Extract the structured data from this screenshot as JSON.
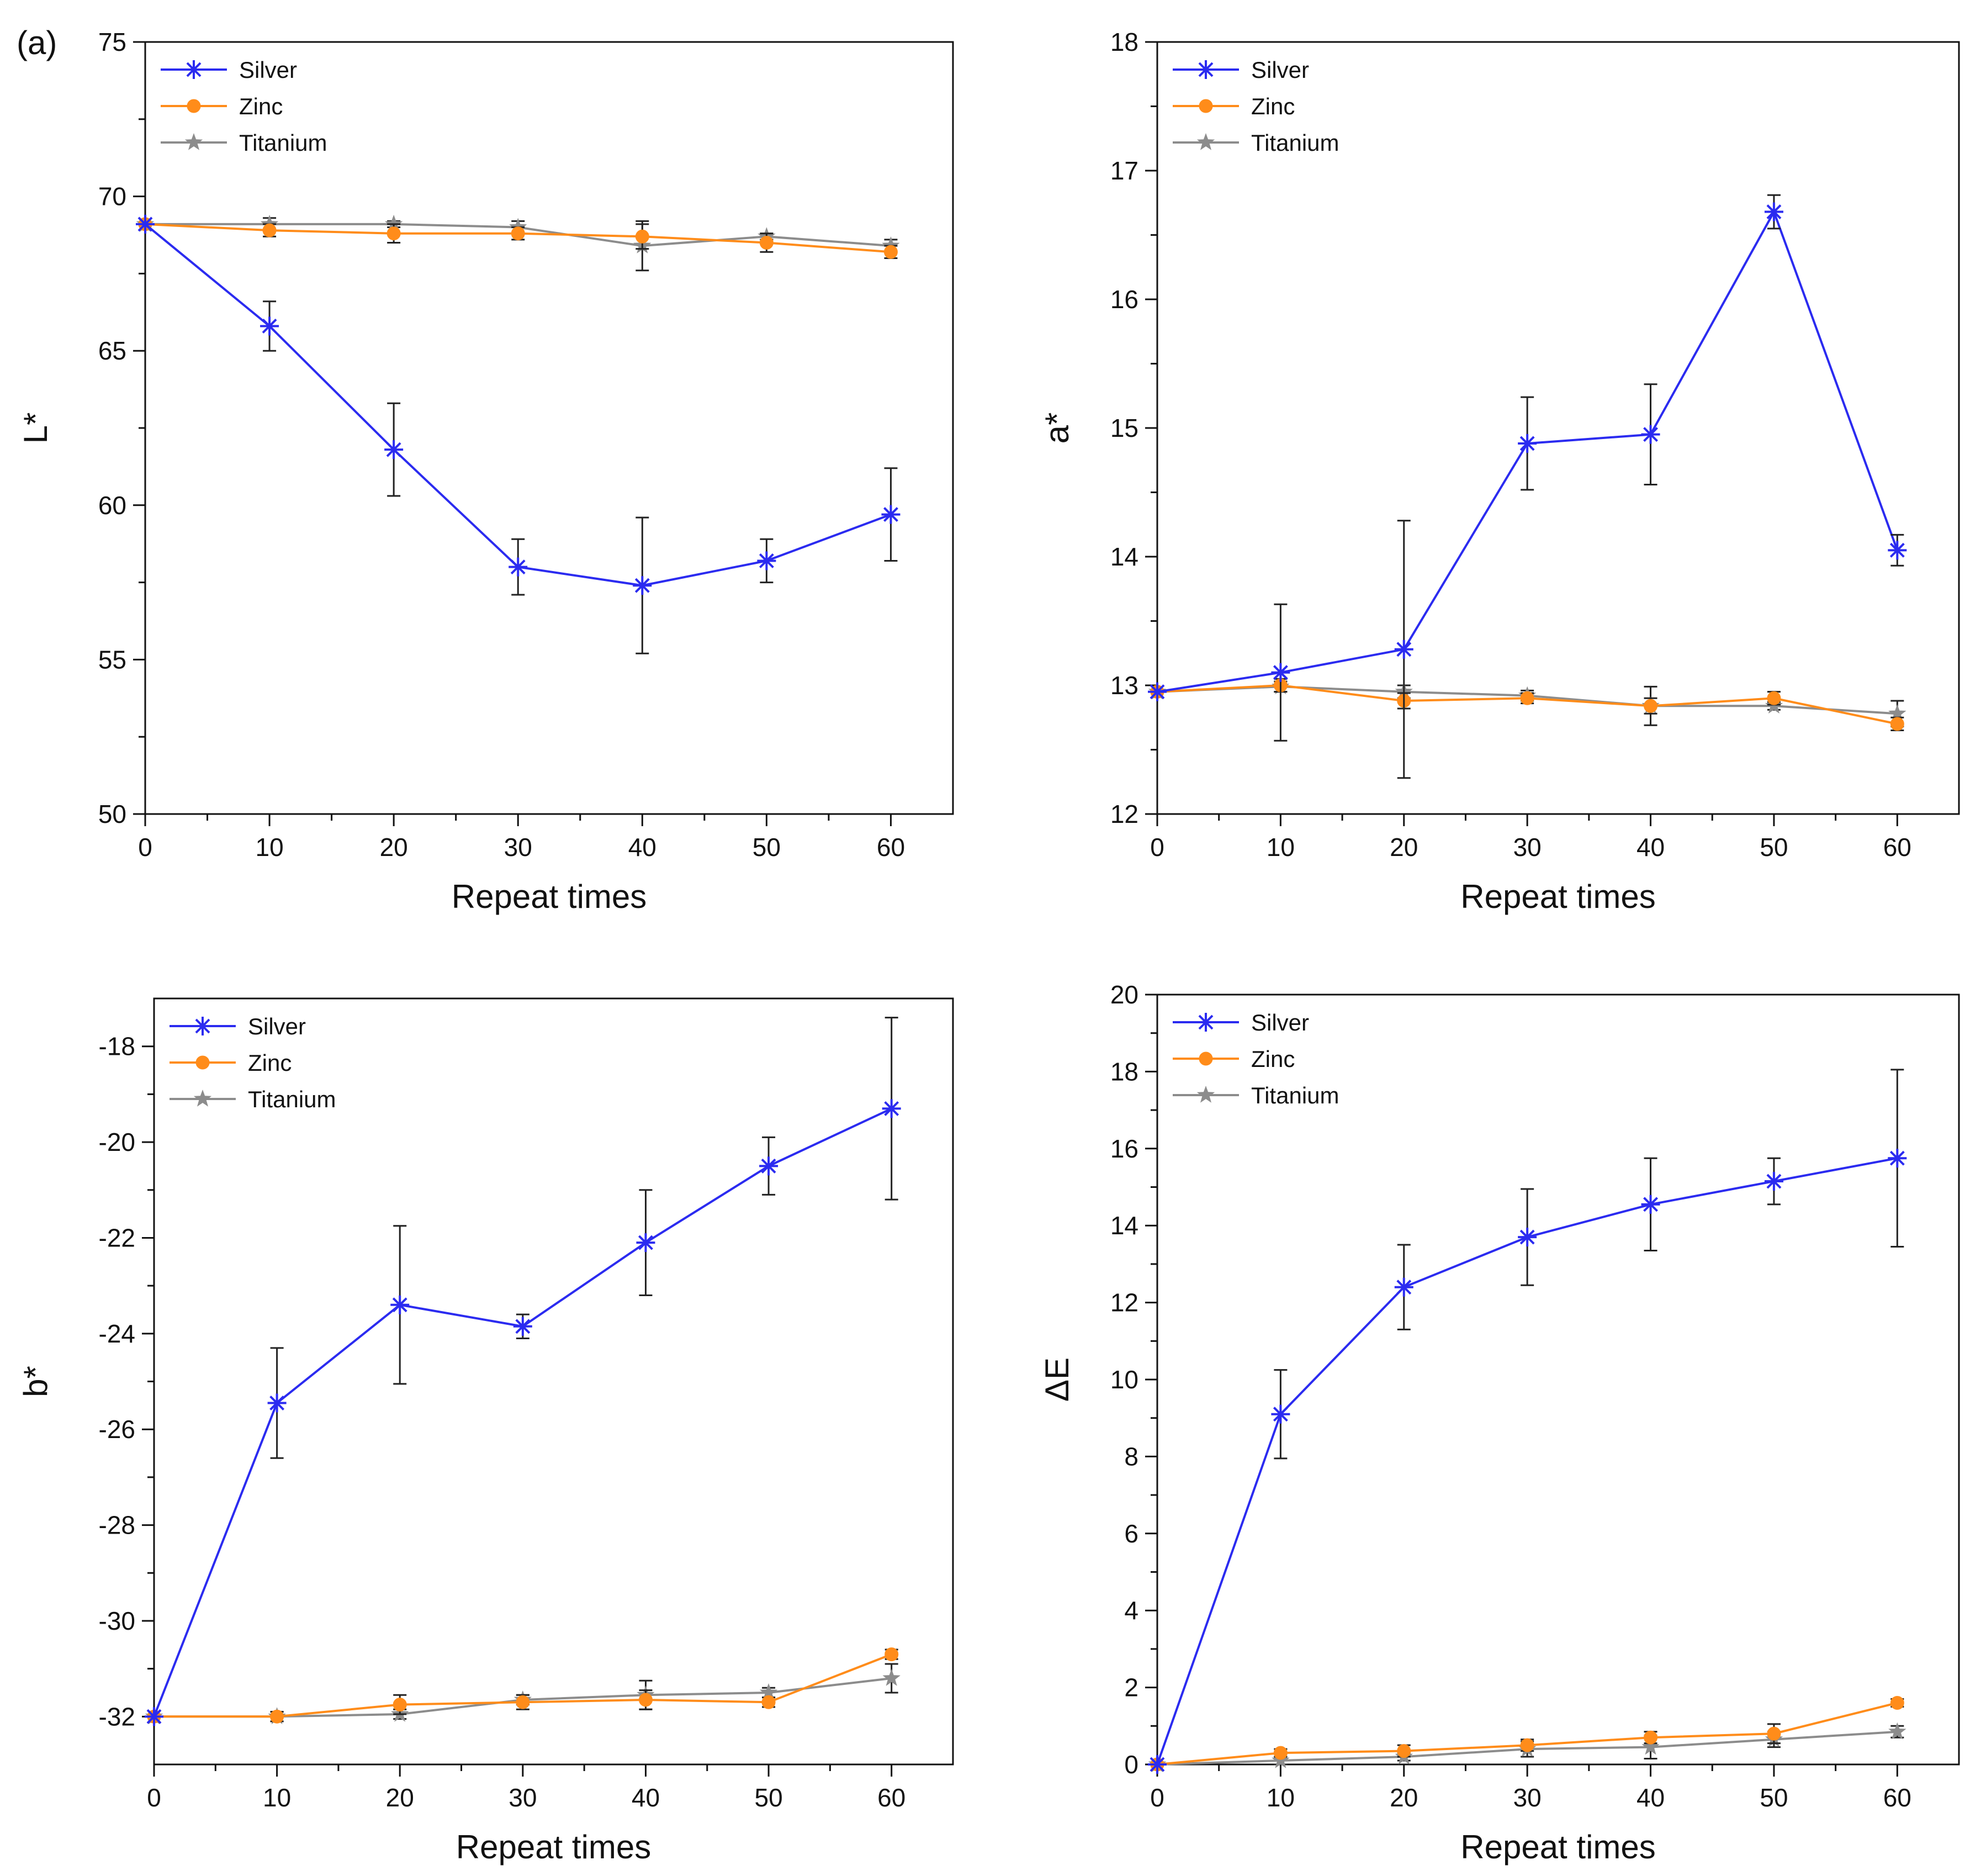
{
  "panel_label": "(a)",
  "colors": {
    "Silver": "#2b2bf0",
    "Zinc": "#ff8c1a",
    "Titanium": "#8c8c8c",
    "error_bar": "#222222"
  },
  "chart_data": [
    {
      "type": "line",
      "xlabel": "Repeat times",
      "ylabel": "L*",
      "xlim": [
        0,
        65
      ],
      "ylim": [
        50,
        75
      ],
      "xticks": [
        0,
        10,
        20,
        30,
        40,
        50,
        60
      ],
      "yticks": [
        50,
        55,
        60,
        65,
        70,
        75
      ],
      "ytick_labels": [
        "50",
        "55",
        "60",
        "65",
        "70",
        "75"
      ],
      "legend": [
        "Silver",
        "Zinc",
        "Titanium"
      ],
      "legend_position": "top-left",
      "x": [
        0,
        10,
        20,
        30,
        40,
        50,
        60
      ],
      "series": [
        {
          "name": "Silver",
          "marker": "asterisk",
          "values": [
            69.1,
            65.8,
            61.8,
            58.0,
            57.4,
            58.2,
            59.7
          ],
          "errors": [
            0.0,
            0.8,
            1.5,
            0.9,
            2.2,
            0.7,
            1.5
          ]
        },
        {
          "name": "Zinc",
          "marker": "circle",
          "values": [
            69.1,
            68.9,
            68.8,
            68.8,
            68.7,
            68.5,
            68.2
          ],
          "errors": [
            0.0,
            0.2,
            0.3,
            0.2,
            0.4,
            0.3,
            0.2
          ]
        },
        {
          "name": "Titanium",
          "marker": "star",
          "values": [
            69.1,
            69.1,
            69.1,
            69.0,
            68.4,
            68.7,
            68.4
          ],
          "errors": [
            0.0,
            0.2,
            0.1,
            0.2,
            0.8,
            0.1,
            0.2
          ]
        }
      ]
    },
    {
      "type": "line",
      "xlabel": "Repeat times",
      "ylabel": "a*",
      "xlim": [
        0,
        65
      ],
      "ylim": [
        12,
        18
      ],
      "xticks": [
        0,
        10,
        20,
        30,
        40,
        50,
        60
      ],
      "yticks": [
        12,
        13,
        14,
        15,
        16,
        17,
        18
      ],
      "ytick_labels": [
        "12",
        "13",
        "14",
        "15",
        "16",
        "17",
        "18"
      ],
      "legend": [
        "Silver",
        "Zinc",
        "Titanium"
      ],
      "legend_position": "top-left",
      "x": [
        0,
        10,
        20,
        30,
        40,
        50,
        60
      ],
      "series": [
        {
          "name": "Silver",
          "marker": "asterisk",
          "values": [
            12.95,
            13.1,
            13.28,
            14.88,
            14.95,
            16.68,
            14.05
          ],
          "errors": [
            0.0,
            0.53,
            1.0,
            0.36,
            0.39,
            0.13,
            0.12
          ]
        },
        {
          "name": "Zinc",
          "marker": "circle",
          "values": [
            12.95,
            13.0,
            12.88,
            12.9,
            12.84,
            12.9,
            12.7
          ],
          "errors": [
            0.0,
            0.05,
            0.06,
            0.04,
            0.06,
            0.05,
            0.05
          ]
        },
        {
          "name": "Titanium",
          "marker": "star",
          "values": [
            12.95,
            12.99,
            12.95,
            12.92,
            12.84,
            12.84,
            12.78
          ],
          "errors": [
            0.0,
            0.04,
            0.05,
            0.04,
            0.15,
            0.03,
            0.1
          ]
        }
      ]
    },
    {
      "type": "line",
      "xlabel": "Repeat times",
      "ylabel": "b*",
      "xlim": [
        0,
        65
      ],
      "ylim": [
        -33,
        -17
      ],
      "xticks": [
        0,
        10,
        20,
        30,
        40,
        50,
        60
      ],
      "yticks": [
        -32,
        -30,
        -28,
        -26,
        -24,
        -22,
        -20,
        -18
      ],
      "ytick_labels": [
        "-32",
        "-30",
        "-28",
        "-26",
        "-24",
        "-22",
        "-20",
        "-18"
      ],
      "legend": [
        "Silver",
        "Zinc",
        "Titanium"
      ],
      "legend_position": "top-left",
      "x": [
        0,
        10,
        20,
        30,
        40,
        50,
        60
      ],
      "series": [
        {
          "name": "Silver",
          "marker": "asterisk",
          "values": [
            -32.0,
            -25.45,
            -23.4,
            -23.85,
            -22.1,
            -20.5,
            -19.3
          ],
          "errors": [
            0.0,
            1.15,
            1.65,
            0.25,
            1.1,
            0.6,
            1.9
          ]
        },
        {
          "name": "Zinc",
          "marker": "circle",
          "values": [
            -32.0,
            -32.0,
            -31.75,
            -31.7,
            -31.65,
            -31.7,
            -30.7
          ],
          "errors": [
            0.0,
            0.1,
            0.2,
            0.15,
            0.2,
            0.1,
            0.1
          ]
        },
        {
          "name": "Titanium",
          "marker": "star",
          "values": [
            -32.0,
            -32.0,
            -31.95,
            -31.65,
            -31.55,
            -31.5,
            -31.2
          ],
          "errors": [
            0.0,
            0.1,
            0.1,
            0.1,
            0.3,
            0.1,
            0.3
          ]
        }
      ]
    },
    {
      "type": "line",
      "xlabel": "Repeat times",
      "ylabel": "ΔE",
      "xlim": [
        0,
        65
      ],
      "ylim": [
        0,
        20
      ],
      "xticks": [
        0,
        10,
        20,
        30,
        40,
        50,
        60
      ],
      "yticks": [
        0,
        2,
        4,
        6,
        8,
        10,
        12,
        14,
        16,
        18,
        20
      ],
      "ytick_labels": [
        "0",
        "2",
        "4",
        "6",
        "8",
        "10",
        "12",
        "14",
        "16",
        "18",
        "20"
      ],
      "legend": [
        "Silver",
        "Zinc",
        "Titanium"
      ],
      "legend_position": "top-left",
      "x": [
        0,
        10,
        20,
        30,
        40,
        50,
        60
      ],
      "series": [
        {
          "name": "Silver",
          "marker": "asterisk",
          "values": [
            0.0,
            9.1,
            12.4,
            13.7,
            14.55,
            15.15,
            15.75
          ],
          "errors": [
            0.0,
            1.15,
            1.1,
            1.25,
            1.2,
            0.6,
            2.3
          ]
        },
        {
          "name": "Zinc",
          "marker": "circle",
          "values": [
            0.0,
            0.3,
            0.35,
            0.5,
            0.7,
            0.8,
            1.6
          ],
          "errors": [
            0.0,
            0.1,
            0.15,
            0.15,
            0.15,
            0.25,
            0.1
          ]
        },
        {
          "name": "Titanium",
          "marker": "star",
          "values": [
            0.0,
            0.1,
            0.2,
            0.4,
            0.45,
            0.65,
            0.85
          ],
          "errors": [
            0.0,
            0.1,
            0.1,
            0.2,
            0.3,
            0.2,
            0.15
          ]
        }
      ]
    }
  ]
}
